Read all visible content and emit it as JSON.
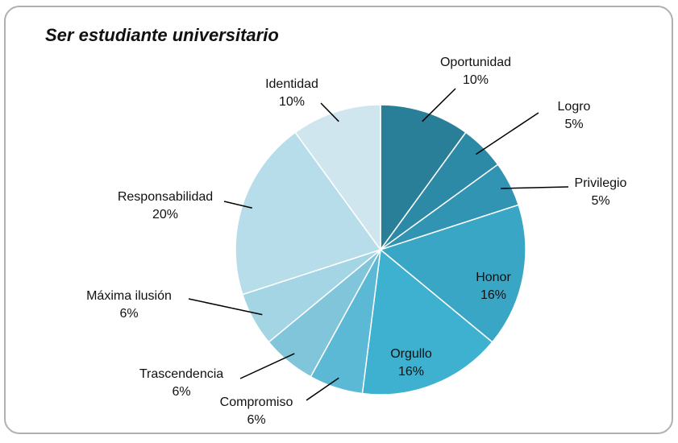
{
  "chart_data": {
    "type": "pie",
    "title": "Ser estudiante universitario",
    "categories": [
      "Oportunidad",
      "Logro",
      "Privilegio",
      "Honor",
      "Orgullo",
      "Compromiso",
      "Trascendencia",
      "Máxima ilusión",
      "Responsabilidad",
      "Identidad"
    ],
    "values": [
      10,
      5,
      5,
      16,
      16,
      6,
      6,
      6,
      20,
      10
    ],
    "value_labels": [
      "10%",
      "5%",
      "5%",
      "16%",
      "16%",
      "6%",
      "6%",
      "6%",
      "20%",
      "10%"
    ],
    "colors": [
      "#2a7f98",
      "#2d8aa6",
      "#3194b2",
      "#3aa6c6",
      "#3eb0d0",
      "#5cb9d5",
      "#80c5da",
      "#a3d5e5",
      "#b8ddea",
      "#d0e6ef"
    ]
  }
}
